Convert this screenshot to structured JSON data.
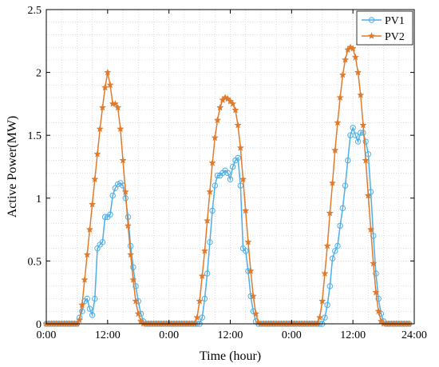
{
  "chart_data": {
    "type": "line",
    "title": "",
    "xlabel": "Time (hour)",
    "ylabel": "Active Power(MW)",
    "xlim": [
      0,
      72
    ],
    "ylim": [
      0,
      2.5
    ],
    "x_ticks": [
      0,
      12,
      24,
      36,
      48,
      60,
      72
    ],
    "x_tick_labels": [
      "0:00",
      "12:00",
      "0:00",
      "12:00",
      "0:00",
      "12:00",
      "24:00"
    ],
    "y_ticks": [
      0,
      0.5,
      1,
      1.5,
      2,
      2.5
    ],
    "y_tick_labels": [
      "0",
      "0.5",
      "1",
      "1.5",
      "2",
      "2.5"
    ],
    "grid": true,
    "legend_position": "top-right",
    "sample_step_hours": 0.5,
    "series": [
      {
        "name": "PV1",
        "color": "#4DAEE8",
        "marker": "circle",
        "points": [
          [
            0,
            0
          ],
          [
            6,
            0
          ],
          [
            7,
            0.1
          ],
          [
            7.5,
            0.18
          ],
          [
            8,
            0.2
          ],
          [
            8.5,
            0.12
          ],
          [
            9,
            0.07
          ],
          [
            9.5,
            0.2
          ],
          [
            10,
            0.6
          ],
          [
            10.5,
            0.63
          ],
          [
            11,
            0.65
          ],
          [
            11.5,
            0.85
          ],
          [
            12,
            0.85
          ],
          [
            12.5,
            0.87
          ],
          [
            13,
            1.02
          ],
          [
            13.5,
            1.08
          ],
          [
            14,
            1.11
          ],
          [
            14.5,
            1.12
          ],
          [
            15,
            1.1
          ],
          [
            15.5,
            1.0
          ],
          [
            16,
            0.85
          ],
          [
            16.5,
            0.62
          ],
          [
            17,
            0.45
          ],
          [
            17.5,
            0.3
          ],
          [
            18,
            0.18
          ],
          [
            18.5,
            0.08
          ],
          [
            19,
            0.02
          ],
          [
            19.5,
            0
          ],
          [
            24,
            0
          ],
          [
            30,
            0
          ],
          [
            30.5,
            0.05
          ],
          [
            31,
            0.2
          ],
          [
            31.5,
            0.4
          ],
          [
            32,
            0.65
          ],
          [
            32.5,
            0.9
          ],
          [
            33,
            1.1
          ],
          [
            33.5,
            1.18
          ],
          [
            34,
            1.18
          ],
          [
            34.5,
            1.2
          ],
          [
            35,
            1.22
          ],
          [
            35.5,
            1.2
          ],
          [
            36,
            1.15
          ],
          [
            36.5,
            1.25
          ],
          [
            37,
            1.3
          ],
          [
            37.5,
            1.32
          ],
          [
            38,
            1.1
          ],
          [
            38.5,
            0.6
          ],
          [
            39,
            0.58
          ],
          [
            39.5,
            0.42
          ],
          [
            40,
            0.22
          ],
          [
            40.5,
            0.1
          ],
          [
            41,
            0.02
          ],
          [
            41.5,
            0
          ],
          [
            48,
            0
          ],
          [
            54,
            0
          ],
          [
            54.5,
            0.05
          ],
          [
            55,
            0.15
          ],
          [
            55.5,
            0.3
          ],
          [
            56,
            0.52
          ],
          [
            56.5,
            0.58
          ],
          [
            57,
            0.62
          ],
          [
            57.5,
            0.78
          ],
          [
            58,
            0.92
          ],
          [
            58.5,
            1.1
          ],
          [
            59,
            1.3
          ],
          [
            59.5,
            1.5
          ],
          [
            60,
            1.56
          ],
          [
            60.5,
            1.5
          ],
          [
            61,
            1.45
          ],
          [
            61.5,
            1.52
          ],
          [
            62,
            1.52
          ],
          [
            62.5,
            1.45
          ],
          [
            63,
            1.35
          ],
          [
            63.5,
            1.05
          ],
          [
            64,
            0.7
          ],
          [
            64.5,
            0.4
          ],
          [
            65,
            0.2
          ],
          [
            65.5,
            0.08
          ],
          [
            66,
            0.02
          ],
          [
            66.5,
            0
          ],
          [
            72,
            0
          ]
        ]
      },
      {
        "name": "PV2",
        "color": "#E07B2E",
        "marker": "star",
        "points": [
          [
            0,
            0
          ],
          [
            6,
            0
          ],
          [
            6.5,
            0.03
          ],
          [
            7,
            0.15
          ],
          [
            7.5,
            0.35
          ],
          [
            8,
            0.55
          ],
          [
            8.5,
            0.75
          ],
          [
            9,
            0.95
          ],
          [
            9.5,
            1.15
          ],
          [
            10,
            1.35
          ],
          [
            10.5,
            1.55
          ],
          [
            11,
            1.72
          ],
          [
            11.5,
            1.88
          ],
          [
            12,
            2.0
          ],
          [
            12.5,
            1.9
          ],
          [
            13,
            1.75
          ],
          [
            13.5,
            1.75
          ],
          [
            14,
            1.72
          ],
          [
            14.5,
            1.55
          ],
          [
            15,
            1.3
          ],
          [
            15.5,
            1.05
          ],
          [
            16,
            0.78
          ],
          [
            16.5,
            0.55
          ],
          [
            17,
            0.35
          ],
          [
            17.5,
            0.18
          ],
          [
            18,
            0.08
          ],
          [
            18.5,
            0.02
          ],
          [
            19,
            0
          ],
          [
            24,
            0
          ],
          [
            29,
            0
          ],
          [
            29.5,
            0.05
          ],
          [
            30,
            0.18
          ],
          [
            30.5,
            0.38
          ],
          [
            31,
            0.58
          ],
          [
            31.5,
            0.82
          ],
          [
            32,
            1.05
          ],
          [
            32.5,
            1.28
          ],
          [
            33,
            1.48
          ],
          [
            33.5,
            1.62
          ],
          [
            34,
            1.72
          ],
          [
            34.5,
            1.78
          ],
          [
            35,
            1.8
          ],
          [
            35.5,
            1.79
          ],
          [
            36,
            1.77
          ],
          [
            36.5,
            1.75
          ],
          [
            37,
            1.7
          ],
          [
            37.5,
            1.58
          ],
          [
            38,
            1.4
          ],
          [
            38.5,
            1.15
          ],
          [
            39,
            0.9
          ],
          [
            39.5,
            0.65
          ],
          [
            40,
            0.42
          ],
          [
            40.5,
            0.22
          ],
          [
            41,
            0.08
          ],
          [
            41.5,
            0.01
          ],
          [
            42,
            0
          ],
          [
            48,
            0
          ],
          [
            53,
            0
          ],
          [
            53.5,
            0.05
          ],
          [
            54,
            0.18
          ],
          [
            54.5,
            0.4
          ],
          [
            55,
            0.62
          ],
          [
            55.5,
            0.88
          ],
          [
            56,
            1.12
          ],
          [
            56.5,
            1.38
          ],
          [
            57,
            1.6
          ],
          [
            57.5,
            1.8
          ],
          [
            58,
            1.98
          ],
          [
            58.5,
            2.1
          ],
          [
            59,
            2.18
          ],
          [
            59.5,
            2.2
          ],
          [
            60,
            2.19
          ],
          [
            60.5,
            2.12
          ],
          [
            61,
            2.0
          ],
          [
            61.5,
            1.82
          ],
          [
            62,
            1.58
          ],
          [
            62.5,
            1.3
          ],
          [
            63,
            1.02
          ],
          [
            63.5,
            0.75
          ],
          [
            64,
            0.48
          ],
          [
            64.5,
            0.25
          ],
          [
            65,
            0.1
          ],
          [
            65.5,
            0.02
          ],
          [
            66,
            0
          ],
          [
            72,
            0
          ]
        ]
      }
    ]
  }
}
